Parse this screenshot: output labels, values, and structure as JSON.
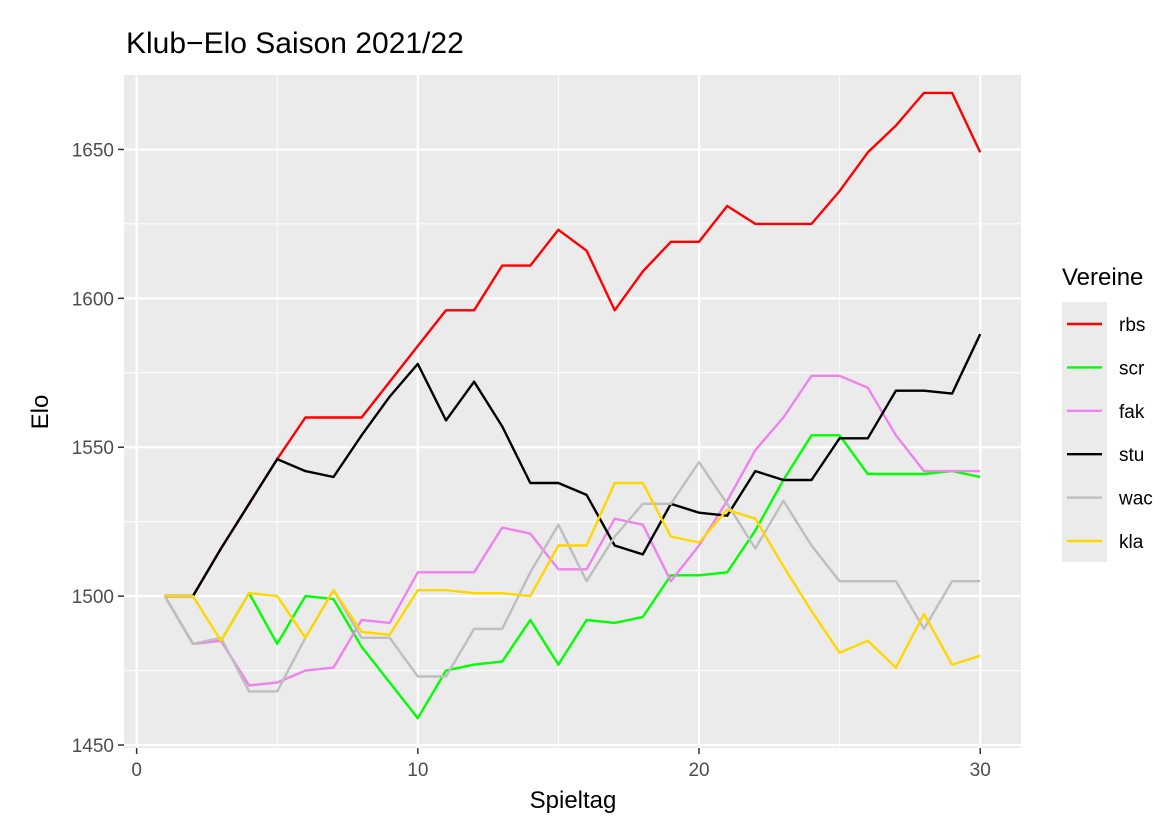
{
  "chart_data": {
    "type": "line",
    "title": "Klub−Elo Saison 2021/22",
    "xlabel": "Spieltag",
    "ylabel": "Elo",
    "xlim": [
      -0.45,
      31.45
    ],
    "ylim": [
      1449,
      1675
    ],
    "x_ticks": [
      0,
      10,
      20,
      30
    ],
    "x_minor_ticks": [
      5,
      15,
      25
    ],
    "y_ticks": [
      1450,
      1500,
      1550,
      1600,
      1650
    ],
    "y_minor_ticks": [
      1475,
      1525,
      1575,
      1625
    ],
    "grid": true,
    "legend": {
      "title": "Vereine",
      "placement": "right"
    },
    "x": [
      1,
      2,
      3,
      4,
      5,
      6,
      7,
      8,
      9,
      10,
      11,
      12,
      13,
      14,
      15,
      16,
      17,
      18,
      19,
      20,
      21,
      22,
      23,
      24,
      25,
      26,
      27,
      28,
      29,
      30
    ],
    "series": [
      {
        "name": "rbs",
        "color": "#ff0000",
        "values": [
          1500,
          1500,
          1516,
          1531,
          1546,
          1560,
          1560,
          1560,
          1572,
          1584,
          1596,
          1596,
          1611,
          1611,
          1623,
          1616,
          1596,
          1609,
          1619,
          1619,
          1631,
          1625,
          1625,
          1625,
          1636,
          1649,
          1658,
          1669,
          1669,
          1649
        ]
      },
      {
        "name": "scr",
        "color": "#00ff00",
        "values": [
          1500,
          1484,
          1485,
          1501,
          1484,
          1500,
          1499,
          1483,
          1471,
          1459,
          1475,
          1477,
          1478,
          1492,
          1477,
          1492,
          1491,
          1493,
          1507,
          1507,
          1508,
          1522,
          1539,
          1554,
          1554,
          1541,
          1541,
          1541,
          1542,
          1540
        ]
      },
      {
        "name": "fak",
        "color": "#ee82ee",
        "values": [
          1500,
          1484,
          1485,
          1470,
          1471,
          1475,
          1476,
          1492,
          1491,
          1508,
          1508,
          1508,
          1523,
          1521,
          1509,
          1509,
          1526,
          1524,
          1505,
          1517,
          1532,
          1549,
          1560,
          1574,
          1574,
          1570,
          1554,
          1542,
          1542,
          1542
        ]
      },
      {
        "name": "stu",
        "color": "#000000",
        "values": [
          1500,
          1500,
          1516,
          1531,
          1546,
          1542,
          1540,
          1554,
          1567,
          1578,
          1559,
          1572,
          1557,
          1538,
          1538,
          1534,
          1517,
          1514,
          1531,
          1528,
          1527,
          1542,
          1539,
          1539,
          1553,
          1553,
          1569,
          1569,
          1568,
          1588
        ]
      },
      {
        "name": "wac",
        "color": "#bebebe",
        "values": [
          1500,
          1484,
          1486,
          1468,
          1468,
          1486,
          1502,
          1486,
          1486,
          1473,
          1473,
          1489,
          1489,
          1508,
          1524,
          1505,
          1520,
          1531,
          1531,
          1545,
          1531,
          1516,
          1532,
          1517,
          1505,
          1505,
          1505,
          1489,
          1505,
          1505
        ]
      },
      {
        "name": "kla",
        "color": "#ffd700",
        "values": [
          1500,
          1500,
          1485,
          1501,
          1500,
          1486,
          1502,
          1488,
          1487,
          1502,
          1502,
          1501,
          1501,
          1500,
          1517,
          1517,
          1538,
          1538,
          1520,
          1518,
          1529,
          1526,
          1510,
          1495,
          1481,
          1485,
          1476,
          1494,
          1477,
          1480
        ]
      }
    ]
  }
}
